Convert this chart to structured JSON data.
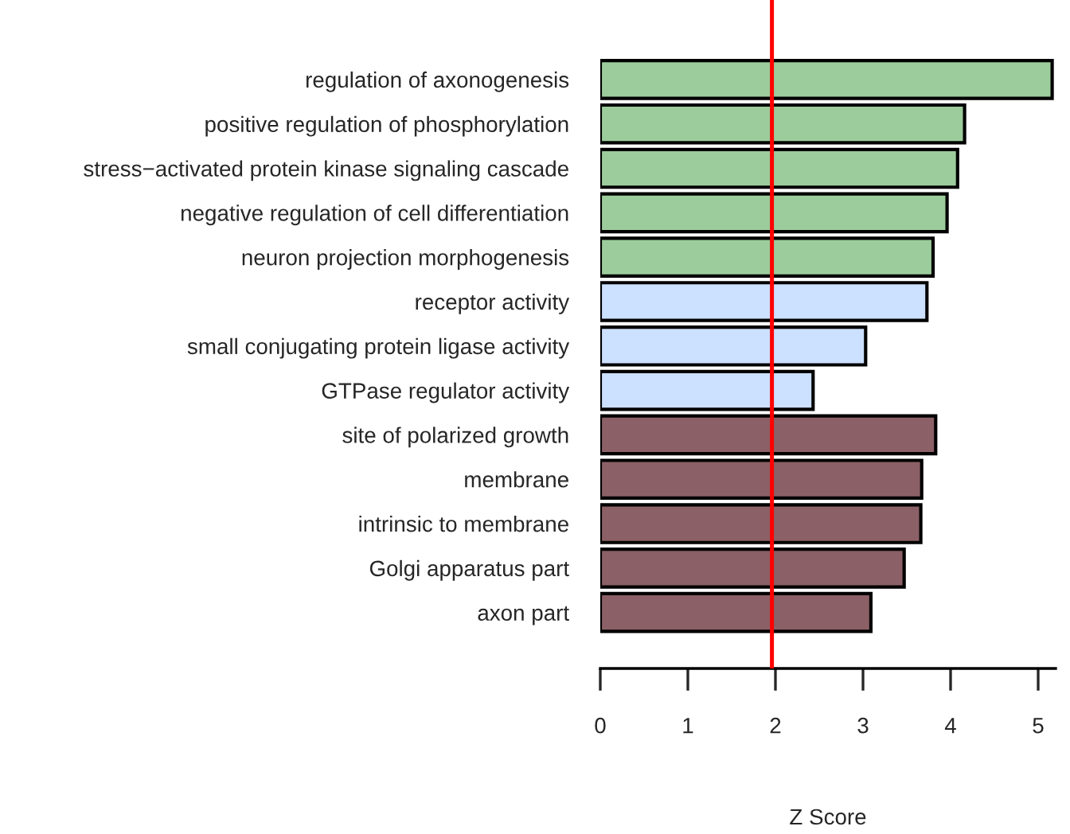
{
  "chart_data": {
    "type": "bar",
    "orientation": "horizontal",
    "xlabel": "Z Score",
    "categories": [
      "regulation of axonogenesis",
      "positive regulation of phosphorylation",
      "stress−activated protein kinase signaling cascade",
      "negative regulation of cell differentiation",
      "neuron projection morphogenesis",
      "receptor activity",
      "small conjugating protein ligase activity",
      "GTPase regulator activity",
      "site of polarized growth",
      "membrane",
      "intrinsic to membrane",
      "Golgi apparatus part",
      "axon part"
    ],
    "values": [
      5.16,
      4.16,
      4.08,
      3.96,
      3.8,
      3.73,
      3.03,
      2.43,
      3.83,
      3.67,
      3.66,
      3.47,
      3.09
    ],
    "colors": [
      "#9ccc9c",
      "#9ccc9c",
      "#9ccc9c",
      "#9ccc9c",
      "#9ccc9c",
      "#cce0ff",
      "#cce0ff",
      "#cce0ff",
      "#8b6066",
      "#8b6066",
      "#8b6066",
      "#8b6066",
      "#8b6066"
    ],
    "xlim": [
      0,
      5.2
    ],
    "xticks": [
      0,
      1,
      2,
      3,
      4,
      5
    ],
    "ref_lines": [
      {
        "axis": "x",
        "value": 1.96,
        "color": "#ff0000"
      }
    ],
    "grid": false,
    "legend": false
  }
}
